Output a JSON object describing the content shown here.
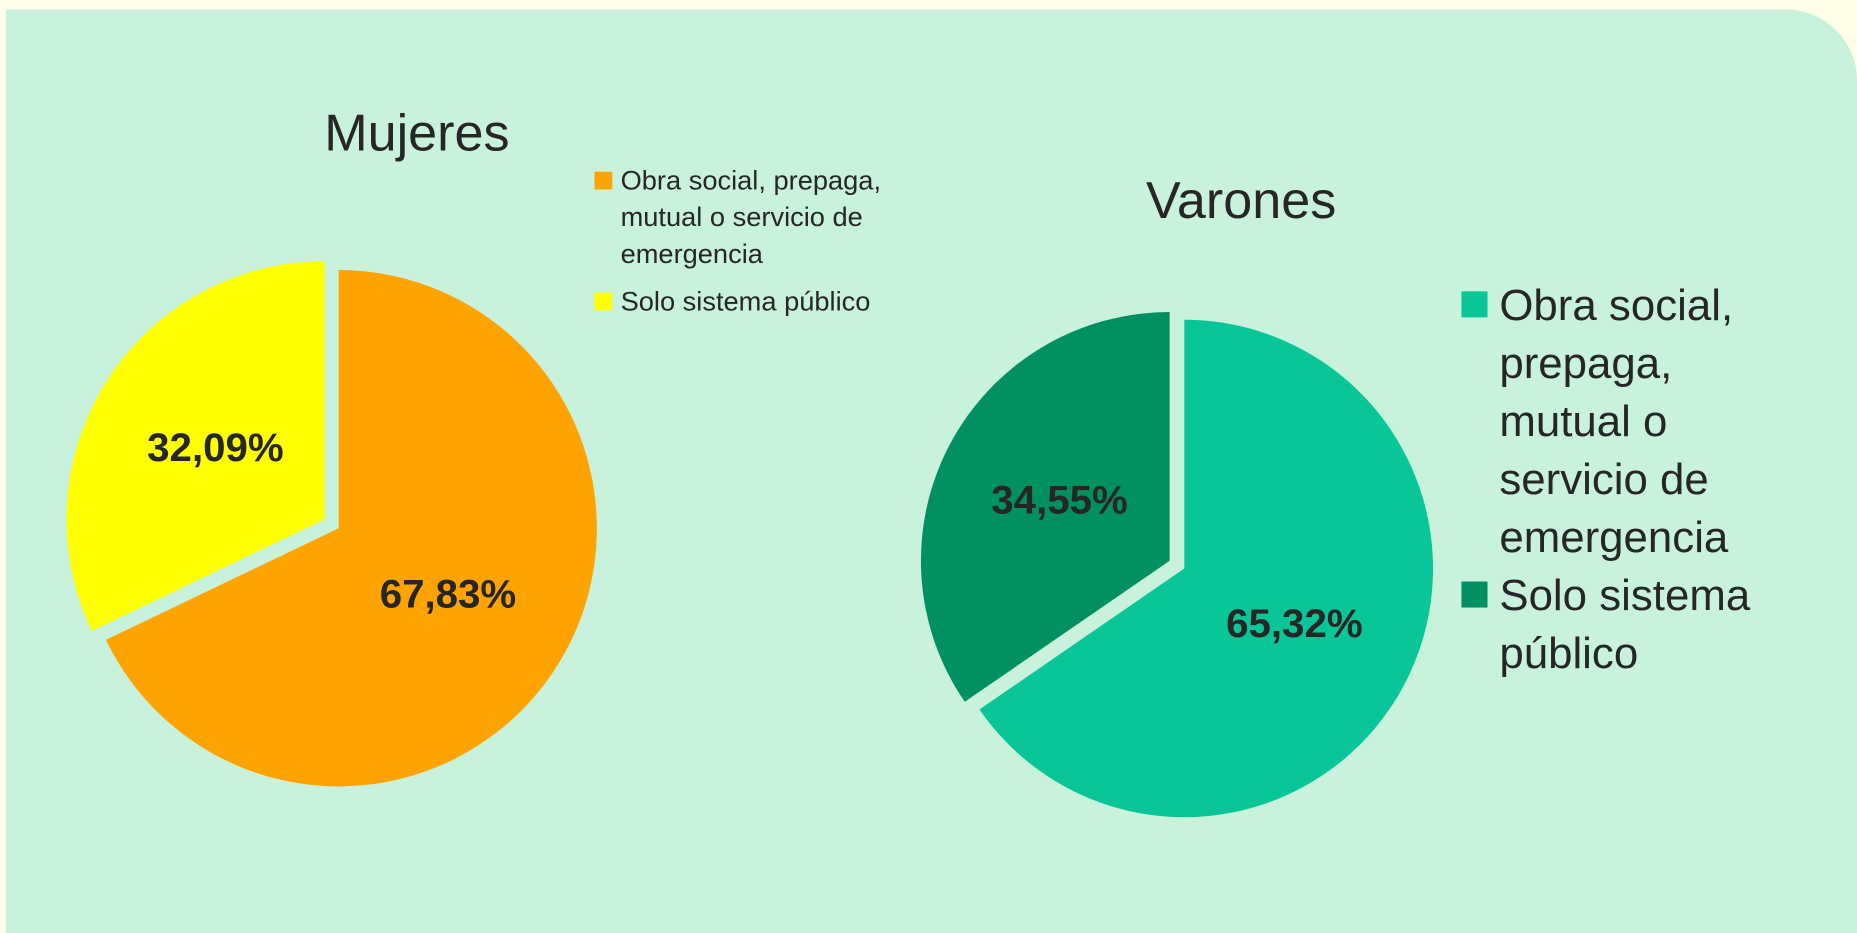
{
  "chart_data": [
    {
      "type": "pie",
      "title": "Mujeres",
      "categories": [
        "Obra social, prepaga, mutual o servicio de emergencia",
        "Solo sistema público"
      ],
      "values": [
        67.83,
        32.09
      ],
      "value_labels": [
        "67,83%",
        "32,09%"
      ],
      "colors": [
        "#ffa300",
        "#ffff00"
      ]
    },
    {
      "type": "pie",
      "title": "Varones",
      "categories": [
        "Obra social, prepaga, mutual o servicio de emergencia",
        "Solo sistema público"
      ],
      "values": [
        65.32,
        34.55
      ],
      "value_labels": [
        "65,32%",
        "34,55%"
      ],
      "colors": [
        "#08c698",
        "#009062"
      ]
    }
  ]
}
